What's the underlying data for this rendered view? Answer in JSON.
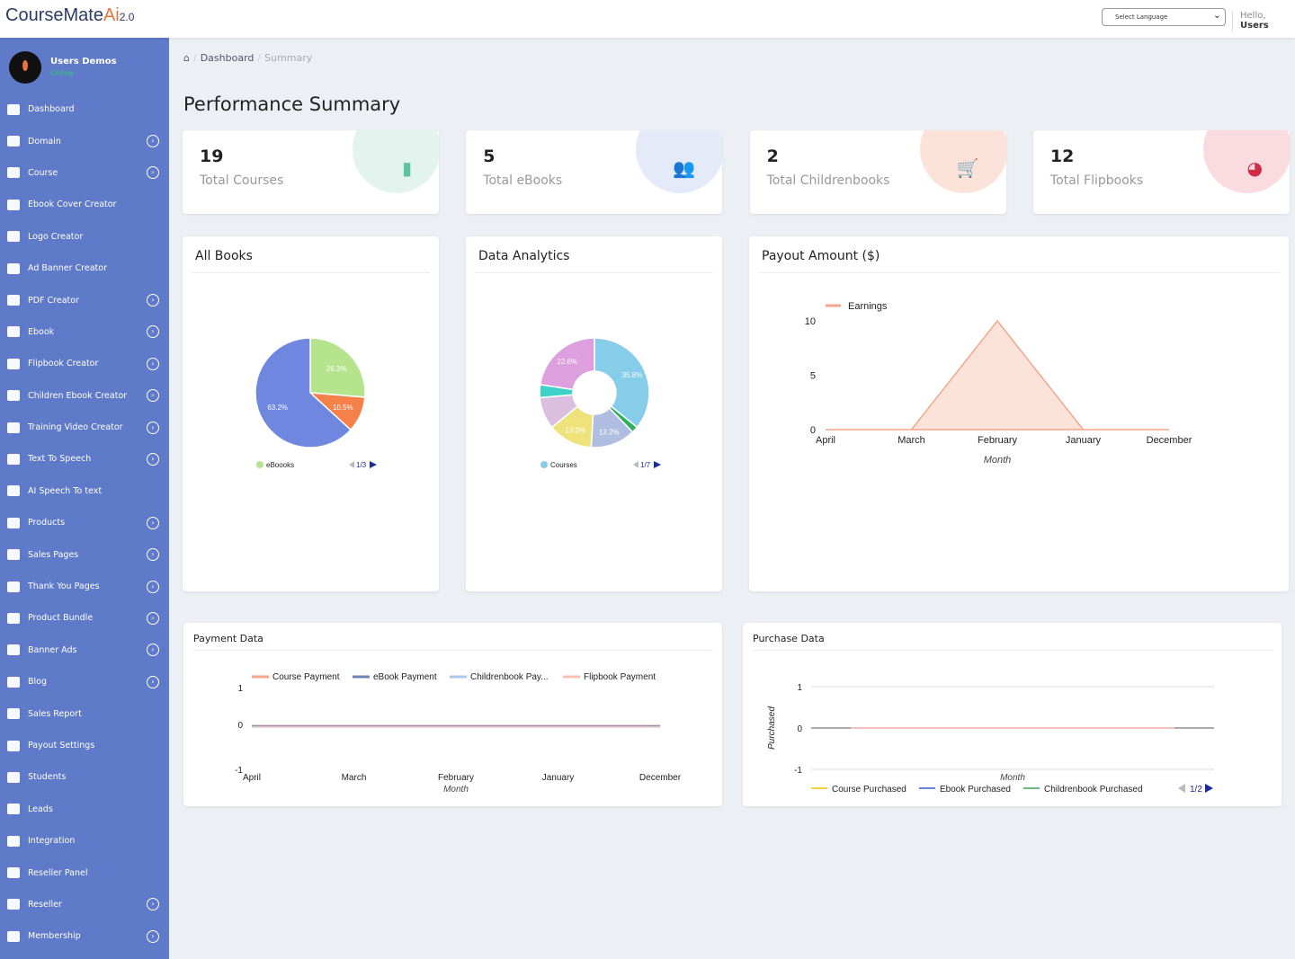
{
  "header": {
    "logo": "CourseMate",
    "logo_ai": "Ai",
    "logo_ver": "2.0",
    "language_select": "Select Language",
    "hello": "Hello,",
    "user": "Users"
  },
  "user": {
    "name": "Users Demos",
    "status": "Online"
  },
  "sidebar": [
    {
      "label": "Dashboard",
      "chev": false
    },
    {
      "label": "Domain",
      "chev": true
    },
    {
      "label": "Course",
      "chev": true
    },
    {
      "label": "Ebook Cover Creator",
      "chev": false
    },
    {
      "label": "Logo Creator",
      "chev": false
    },
    {
      "label": "Ad Banner Creator",
      "chev": false
    },
    {
      "label": "PDF Creator",
      "chev": true
    },
    {
      "label": "Ebook",
      "chev": true
    },
    {
      "label": "Flipbook Creator",
      "chev": true
    },
    {
      "label": "Children Ebook Creator",
      "chev": true
    },
    {
      "label": "Training Video Creator",
      "chev": true
    },
    {
      "label": "Text To Speech",
      "chev": true
    },
    {
      "label": "AI Speech To text",
      "chev": false
    },
    {
      "label": "Products",
      "chev": true
    },
    {
      "label": "Sales Pages",
      "chev": true
    },
    {
      "label": "Thank You Pages",
      "chev": true
    },
    {
      "label": "Product Bundle",
      "chev": true
    },
    {
      "label": "Banner Ads",
      "chev": true
    },
    {
      "label": "Blog",
      "chev": true
    },
    {
      "label": "Sales Report",
      "chev": false
    },
    {
      "label": "Payout Settings",
      "chev": false
    },
    {
      "label": "Students",
      "chev": false
    },
    {
      "label": "Leads",
      "chev": false
    },
    {
      "label": "Integration",
      "chev": false
    },
    {
      "label": "Reseller Panel",
      "chev": false
    },
    {
      "label": "Reseller",
      "chev": true
    },
    {
      "label": "Membership",
      "chev": true
    }
  ],
  "breadcrumb": {
    "home": "Dashboard",
    "current": "Summary"
  },
  "page_title": "Performance Summary",
  "stats": [
    {
      "value": "19",
      "label": "Total Courses",
      "icon": "bar-chart-icon",
      "color": "#5cc2a0",
      "bg": "#e3f4ef"
    },
    {
      "value": "5",
      "label": "Total eBooks",
      "icon": "users-icon",
      "color": "#6a8fd8",
      "bg": "#e5eaf9"
    },
    {
      "value": "2",
      "label": "Total Childrenbooks",
      "icon": "cart-icon",
      "color": "#f08060",
      "bg": "#fbe3da"
    },
    {
      "value": "12",
      "label": "Total Flipbooks",
      "icon": "pie-icon",
      "color": "#d02a44",
      "bg": "#fadbe0"
    }
  ],
  "chart_data": [
    {
      "type": "pie",
      "title": "All Books",
      "legend": "eBoooks",
      "pager": "1/3",
      "slices": [
        {
          "value": 26.3,
          "label": "26.3%",
          "color": "#b5e48c"
        },
        {
          "value": 10.5,
          "label": "10.5%",
          "color": "#f6804a"
        },
        {
          "value": 63.2,
          "label": "63.2%",
          "color": "#6f87de"
        }
      ]
    },
    {
      "type": "pie",
      "title": "Data Analytics",
      "legend": "Courses",
      "pager": "1/7",
      "donut": true,
      "slices": [
        {
          "value": 35.8,
          "label": "35.8%",
          "color": "#86cdea"
        },
        {
          "value": 1.9,
          "label": "",
          "color": "#2fae5c"
        },
        {
          "value": 13.2,
          "label": "13.2%",
          "color": "#aebde0"
        },
        {
          "value": 13.2,
          "label": "13.2%",
          "color": "#f0e27a"
        },
        {
          "value": 9.4,
          "label": "",
          "color": "#dbbfdf"
        },
        {
          "value": 3.8,
          "label": "",
          "color": "#3fd2c8"
        },
        {
          "value": 22.6,
          "label": "22.6%",
          "color": "#de9fde"
        }
      ]
    },
    {
      "type": "area",
      "title": "Payout Amount ($)",
      "legend": "Earnings",
      "xlabel": "Month",
      "categories": [
        "April",
        "March",
        "February",
        "January",
        "December"
      ],
      "values": [
        0,
        0,
        10,
        0,
        0
      ],
      "yticks": [
        0,
        5,
        10
      ],
      "ylim": [
        0,
        10
      ]
    },
    {
      "type": "line",
      "title": "Payment Data",
      "xlabel": "Month",
      "categories": [
        "April",
        "March",
        "February",
        "January",
        "December"
      ],
      "yticks": [
        -1,
        0,
        1
      ],
      "series": [
        {
          "name": "Course Payment",
          "color": "#f4a58a",
          "values": [
            0,
            0,
            0,
            0,
            0
          ]
        },
        {
          "name": "eBook Payment",
          "color": "#6a85b8",
          "values": [
            0,
            0,
            0,
            0,
            0
          ]
        },
        {
          "name": "Childrenbook Pay...",
          "color": "#a8c8ee",
          "values": [
            0,
            0,
            0,
            0,
            0
          ]
        },
        {
          "name": "Flipbook Payment",
          "color": "#f8c0b0",
          "values": [
            0,
            0,
            0,
            0,
            0
          ]
        }
      ]
    },
    {
      "type": "line",
      "title": "Purchase Data",
      "xlabel": "Month",
      "ylabel": "Purchased",
      "yticks": [
        -1,
        0,
        1
      ],
      "pager": "1/2",
      "series": [
        {
          "name": "Course Purchased",
          "color": "#f2c200",
          "values": [
            0
          ]
        },
        {
          "name": "Ebook Purchased",
          "color": "#3b5bcc",
          "values": [
            0
          ]
        },
        {
          "name": "Childrenbook Purchased",
          "color": "#3aa655",
          "values": [
            0
          ]
        }
      ]
    }
  ]
}
